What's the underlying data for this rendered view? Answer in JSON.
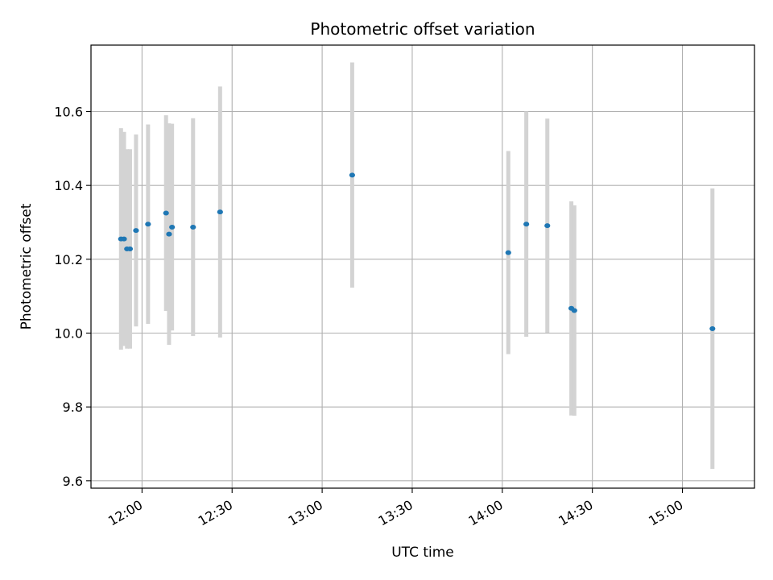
{
  "chart_data": {
    "type": "scatter",
    "title": "Photometric offset variation",
    "xlabel": "UTC time",
    "ylabel": "Photometric offset",
    "x_unit": "UTC time HH:MM",
    "xlim": [
      "11:43",
      "15:24"
    ],
    "ylim": [
      9.58,
      10.78
    ],
    "xticks": [
      "12:00",
      "12:30",
      "13:00",
      "13:30",
      "14:00",
      "14:30",
      "15:00"
    ],
    "yticks": [
      9.6,
      9.8,
      10.0,
      10.2,
      10.4,
      10.6
    ],
    "ytick_labels": [
      "9.6",
      "9.8",
      "10.0",
      "10.2",
      "10.4",
      "10.6"
    ],
    "grid": true,
    "marker_color": "#1f77b4",
    "errorbar_color": "#d3d3d3",
    "points": [
      {
        "x": "11:53",
        "y": 10.255,
        "yerr": 0.3
      },
      {
        "x": "11:54",
        "y": 10.255,
        "yerr": 0.29
      },
      {
        "x": "11:55",
        "y": 10.228,
        "yerr": 0.27
      },
      {
        "x": "11:56",
        "y": 10.228,
        "yerr": 0.27
      },
      {
        "x": "11:58",
        "y": 10.278,
        "yerr": 0.26
      },
      {
        "x": "12:02",
        "y": 10.295,
        "yerr": 0.27
      },
      {
        "x": "12:08",
        "y": 10.325,
        "yerr": 0.265
      },
      {
        "x": "12:09",
        "y": 10.268,
        "yerr": 0.3
      },
      {
        "x": "12:10",
        "y": 10.287,
        "yerr": 0.28
      },
      {
        "x": "12:17",
        "y": 10.287,
        "yerr": 0.295
      },
      {
        "x": "12:26",
        "y": 10.328,
        "yerr": 0.34
      },
      {
        "x": "13:10",
        "y": 10.428,
        "yerr": 0.305
      },
      {
        "x": "14:02",
        "y": 10.218,
        "yerr": 0.275
      },
      {
        "x": "14:08",
        "y": 10.295,
        "yerr": 0.305
      },
      {
        "x": "14:15",
        "y": 10.291,
        "yerr": 0.29
      },
      {
        "x": "14:23",
        "y": 10.067,
        "yerr": 0.29
      },
      {
        "x": "14:24",
        "y": 10.061,
        "yerr": 0.285
      },
      {
        "x": "15:10",
        "y": 10.012,
        "yerr": 0.38
      }
    ]
  }
}
